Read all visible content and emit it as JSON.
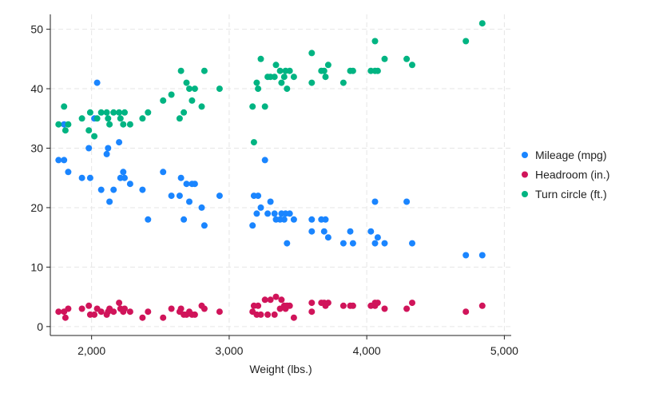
{
  "chart_data": {
    "type": "scatter",
    "title": "",
    "xlabel": "Weight (lbs.)",
    "ylabel": "",
    "xlim": [
      1700,
      5050
    ],
    "ylim": [
      -1.5,
      52.5
    ],
    "x_ticks": [
      2000,
      3000,
      4000,
      5000
    ],
    "x_tick_labels": [
      "2,000",
      "3,000",
      "4,000",
      "5,000"
    ],
    "y_ticks": [
      0,
      10,
      20,
      30,
      40,
      50
    ],
    "y_tick_labels": [
      "0",
      "10",
      "20",
      "30",
      "40",
      "50"
    ],
    "grid": true,
    "legend_position": "right",
    "series": [
      {
        "name": "Mileage (mpg)",
        "color": "#1a85ff",
        "points": [
          [
            1760,
            28
          ],
          [
            1800,
            28
          ],
          [
            1800,
            34
          ],
          [
            1830,
            26
          ],
          [
            1930,
            25
          ],
          [
            1980,
            30
          ],
          [
            1990,
            25
          ],
          [
            2020,
            35
          ],
          [
            2040,
            41
          ],
          [
            2070,
            23
          ],
          [
            2110,
            29
          ],
          [
            2120,
            30
          ],
          [
            2130,
            21
          ],
          [
            2160,
            23
          ],
          [
            2200,
            31
          ],
          [
            2210,
            25
          ],
          [
            2230,
            26
          ],
          [
            2240,
            25
          ],
          [
            2280,
            24
          ],
          [
            2370,
            23
          ],
          [
            2410,
            18
          ],
          [
            2520,
            26
          ],
          [
            2580,
            22
          ],
          [
            2640,
            22
          ],
          [
            2650,
            25
          ],
          [
            2670,
            18
          ],
          [
            2690,
            24
          ],
          [
            2710,
            21
          ],
          [
            2730,
            24
          ],
          [
            2750,
            24
          ],
          [
            2800,
            20
          ],
          [
            2820,
            17
          ],
          [
            2930,
            22
          ],
          [
            3170,
            17
          ],
          [
            3180,
            22
          ],
          [
            3210,
            22
          ],
          [
            3200,
            19
          ],
          [
            3230,
            20
          ],
          [
            3260,
            28
          ],
          [
            3280,
            19
          ],
          [
            3300,
            21
          ],
          [
            3330,
            19
          ],
          [
            3340,
            18
          ],
          [
            3370,
            18
          ],
          [
            3380,
            19
          ],
          [
            3400,
            18
          ],
          [
            3410,
            19
          ],
          [
            3420,
            14
          ],
          [
            3440,
            19
          ],
          [
            3470,
            18
          ],
          [
            3600,
            16
          ],
          [
            3600,
            18
          ],
          [
            3670,
            18
          ],
          [
            3690,
            16
          ],
          [
            3700,
            18
          ],
          [
            3720,
            15
          ],
          [
            3830,
            14
          ],
          [
            3880,
            16
          ],
          [
            3900,
            14
          ],
          [
            4030,
            16
          ],
          [
            4060,
            14
          ],
          [
            4060,
            21
          ],
          [
            4080,
            15
          ],
          [
            4130,
            14
          ],
          [
            4290,
            21
          ],
          [
            4330,
            14
          ],
          [
            4720,
            12
          ],
          [
            4840,
            12
          ]
        ]
      },
      {
        "name": "Headroom (in.)",
        "color": "#d0145a",
        "points": [
          [
            1760,
            2.5
          ],
          [
            1800,
            2.5
          ],
          [
            1810,
            1.5
          ],
          [
            1830,
            3.0
          ],
          [
            1930,
            3.0
          ],
          [
            1980,
            3.5
          ],
          [
            1990,
            2.0
          ],
          [
            2020,
            2.0
          ],
          [
            2040,
            3.0
          ],
          [
            2070,
            2.5
          ],
          [
            2110,
            2.0
          ],
          [
            2120,
            2.5
          ],
          [
            2130,
            3.0
          ],
          [
            2160,
            2.5
          ],
          [
            2200,
            4.0
          ],
          [
            2210,
            3.0
          ],
          [
            2230,
            2.5
          ],
          [
            2240,
            3.0
          ],
          [
            2280,
            2.5
          ],
          [
            2370,
            1.5
          ],
          [
            2410,
            2.5
          ],
          [
            2520,
            1.5
          ],
          [
            2580,
            3.0
          ],
          [
            2640,
            2.5
          ],
          [
            2650,
            3.0
          ],
          [
            2670,
            2.0
          ],
          [
            2690,
            2.0
          ],
          [
            2710,
            2.5
          ],
          [
            2730,
            2.0
          ],
          [
            2750,
            2.0
          ],
          [
            2800,
            3.5
          ],
          [
            2820,
            3.0
          ],
          [
            2930,
            2.5
          ],
          [
            3170,
            2.5
          ],
          [
            3180,
            3.5
          ],
          [
            3210,
            3.5
          ],
          [
            3200,
            2.0
          ],
          [
            3230,
            2.0
          ],
          [
            3260,
            4.5
          ],
          [
            3280,
            2.0
          ],
          [
            3300,
            4.5
          ],
          [
            3330,
            2.0
          ],
          [
            3340,
            5.0
          ],
          [
            3370,
            3.0
          ],
          [
            3380,
            4.5
          ],
          [
            3400,
            3.5
          ],
          [
            3410,
            3.0
          ],
          [
            3420,
            3.5
          ],
          [
            3440,
            3.5
          ],
          [
            3470,
            1.5
          ],
          [
            3600,
            4.0
          ],
          [
            3600,
            2.5
          ],
          [
            3670,
            4.0
          ],
          [
            3690,
            4.0
          ],
          [
            3700,
            3.5
          ],
          [
            3720,
            4.0
          ],
          [
            3830,
            3.5
          ],
          [
            3880,
            3.5
          ],
          [
            3900,
            3.5
          ],
          [
            4030,
            3.5
          ],
          [
            4060,
            3.5
          ],
          [
            4060,
            4.0
          ],
          [
            4080,
            4.0
          ],
          [
            4130,
            3.0
          ],
          [
            4290,
            3.0
          ],
          [
            4330,
            4.0
          ],
          [
            4720,
            2.5
          ],
          [
            4840,
            3.5
          ]
        ]
      },
      {
        "name": "Turn circle (ft.)",
        "color": "#00b482",
        "points": [
          [
            1760,
            34
          ],
          [
            1800,
            37
          ],
          [
            1810,
            33
          ],
          [
            1830,
            34
          ],
          [
            1930,
            35
          ],
          [
            1980,
            33
          ],
          [
            1990,
            36
          ],
          [
            2020,
            32
          ],
          [
            2040,
            35
          ],
          [
            2070,
            36
          ],
          [
            2110,
            36
          ],
          [
            2120,
            35
          ],
          [
            2130,
            34
          ],
          [
            2160,
            36
          ],
          [
            2200,
            36
          ],
          [
            2210,
            35
          ],
          [
            2230,
            34
          ],
          [
            2240,
            36
          ],
          [
            2280,
            34
          ],
          [
            2370,
            35
          ],
          [
            2410,
            36
          ],
          [
            2520,
            38
          ],
          [
            2580,
            39
          ],
          [
            2640,
            35
          ],
          [
            2650,
            43
          ],
          [
            2670,
            36
          ],
          [
            2690,
            41
          ],
          [
            2710,
            40
          ],
          [
            2730,
            38
          ],
          [
            2750,
            40
          ],
          [
            2800,
            37
          ],
          [
            2820,
            43
          ],
          [
            2930,
            40
          ],
          [
            3170,
            37
          ],
          [
            3180,
            31
          ],
          [
            3210,
            40
          ],
          [
            3200,
            41
          ],
          [
            3230,
            45
          ],
          [
            3260,
            37
          ],
          [
            3280,
            42
          ],
          [
            3300,
            42
          ],
          [
            3330,
            42
          ],
          [
            3340,
            44
          ],
          [
            3370,
            43
          ],
          [
            3380,
            41
          ],
          [
            3400,
            42
          ],
          [
            3410,
            43
          ],
          [
            3420,
            40
          ],
          [
            3440,
            43
          ],
          [
            3470,
            42
          ],
          [
            3600,
            46
          ],
          [
            3600,
            41
          ],
          [
            3670,
            43
          ],
          [
            3690,
            43
          ],
          [
            3700,
            42
          ],
          [
            3720,
            44
          ],
          [
            3830,
            41
          ],
          [
            3880,
            43
          ],
          [
            3900,
            43
          ],
          [
            4030,
            43
          ],
          [
            4060,
            43
          ],
          [
            4060,
            48
          ],
          [
            4080,
            43
          ],
          [
            4130,
            45
          ],
          [
            4290,
            45
          ],
          [
            4330,
            44
          ],
          [
            4720,
            48
          ],
          [
            4840,
            51
          ]
        ]
      }
    ]
  }
}
